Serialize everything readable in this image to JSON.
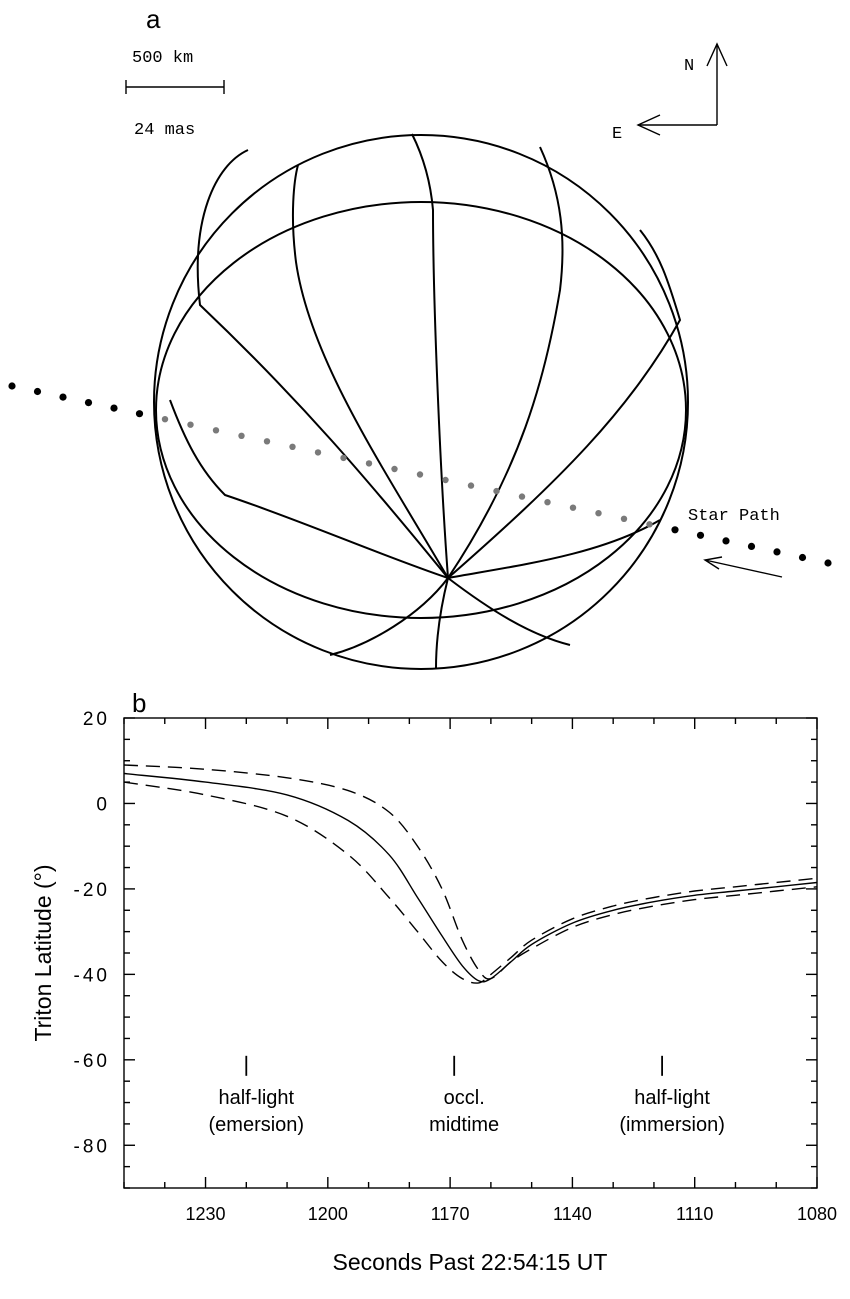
{
  "panel_a": {
    "label": "a",
    "scale_bar": {
      "distance_label": "500 km",
      "angle_label": "24 mas"
    },
    "compass": {
      "north_label": "N",
      "east_label": "E"
    },
    "star_path_label": "Star Path",
    "colors": {
      "outside_dots": "#000000",
      "inside_dots": "#7a7a7a"
    }
  },
  "panel_b": {
    "label": "b",
    "annotations": [
      {
        "x": 1220,
        "lines": [
          "half-light",
          "(emersion)"
        ]
      },
      {
        "x": 1169,
        "lines": [
          "occl.",
          "midtime"
        ]
      },
      {
        "x": 1118,
        "lines": [
          "half-light",
          "(immersion)"
        ]
      }
    ]
  },
  "chart_data": {
    "type": "line",
    "xlabel": "Seconds Past 22:54:15 UT",
    "ylabel": "Triton Latitude (°)",
    "xlim": [
      1080,
      1250
    ],
    "x_reversed": true,
    "ylim": [
      -90,
      20
    ],
    "x_ticks": [
      1230,
      1200,
      1170,
      1140,
      1110,
      1080
    ],
    "y_ticks": [
      20,
      0,
      -20,
      -40,
      -60,
      -80
    ],
    "grid": false,
    "series": [
      {
        "style": "solid",
        "x": [
          1250,
          1230,
          1210,
          1195,
          1185,
          1178,
          1172,
          1167,
          1163,
          1160,
          1155,
          1150,
          1140,
          1130,
          1120,
          1110,
          1100,
          1090,
          1080
        ],
        "y": [
          7,
          5,
          2,
          -4,
          -12,
          -22,
          -31,
          -38,
          -41.5,
          -41,
          -37,
          -33,
          -28,
          -25,
          -23,
          -21.5,
          -20.5,
          -19.5,
          -18.5
        ]
      },
      {
        "style": "dashed",
        "x": [
          1250,
          1230,
          1210,
          1195,
          1185,
          1178,
          1172,
          1167,
          1163,
          1160,
          1155,
          1150,
          1140,
          1130,
          1120,
          1110,
          1100,
          1090,
          1080
        ],
        "y": [
          5,
          2,
          -3,
          -12,
          -22,
          -30,
          -37,
          -41,
          -42,
          -40,
          -36,
          -32,
          -27,
          -24,
          -22,
          -20.5,
          -19.5,
          -18.5,
          -17.5
        ]
      },
      {
        "style": "dashed",
        "x": [
          1250,
          1230,
          1210,
          1195,
          1185,
          1178,
          1172,
          1167,
          1163,
          1160,
          1155,
          1150,
          1140,
          1130,
          1120,
          1110,
          1100,
          1090,
          1080
        ],
        "y": [
          9,
          8,
          6,
          3,
          -2,
          -10,
          -20,
          -32,
          -39,
          -41,
          -37,
          -34,
          -29,
          -26,
          -24,
          -22.5,
          -21.5,
          -20.5,
          -19.5
        ]
      }
    ]
  }
}
